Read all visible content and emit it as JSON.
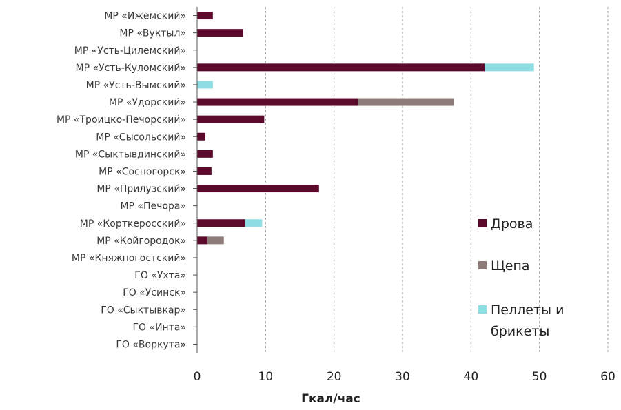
{
  "chart_data": {
    "type": "bar",
    "orientation": "horizontal",
    "stacked": true,
    "categories": [
      "МР «Ижемский»",
      "МР «Вуктыл»",
      "МР «Усть-Цилемский»",
      "МР «Усть-Куломский»",
      "МР «Усть-Вымский»",
      "МР «Удорский»",
      "МР «Троицко-Печорский»",
      "МР «Сысольский»",
      "МР «Сыктывдинский»",
      "МР «Сосногорск»",
      "МР «Прилузский»",
      "МР «Печора»",
      "МР «Корткеросский»",
      "МР «Койгородок»",
      "МР «Княжпогостский»",
      "ГО «Ухта»",
      "ГО «Усинск»",
      "ГО «Сыктывкар»",
      "ГО «Инта»",
      "ГО «Воркута»"
    ],
    "series": [
      {
        "name": "Дрова",
        "color": "#5c0a2c",
        "values": [
          2.3,
          6.7,
          0,
          42.0,
          0,
          23.5,
          9.8,
          1.2,
          2.3,
          2.1,
          17.8,
          0,
          7.0,
          1.5,
          0,
          0,
          0,
          0,
          0,
          0
        ]
      },
      {
        "name": "Щепа",
        "color": "#8c7b76",
        "values": [
          0,
          0,
          0,
          0,
          0,
          14.0,
          0,
          0,
          0,
          0,
          0,
          0,
          0,
          2.4,
          0,
          0,
          0,
          0,
          0,
          0
        ]
      },
      {
        "name": "Пеллеты и брикеты",
        "color": "#8fdde3",
        "values": [
          0,
          0,
          0,
          7.2,
          2.3,
          0,
          0,
          0,
          0,
          0,
          0,
          0,
          2.5,
          0,
          0,
          0,
          0,
          0,
          0,
          0
        ]
      }
    ],
    "x_ticks": [
      "0",
      "10",
      "20",
      "30",
      "40",
      "50",
      "60"
    ],
    "xlim": [
      0,
      60
    ],
    "xlabel": "Гкал/час",
    "legend": {
      "position": "right",
      "entries": [
        "Дрова",
        "Щепа",
        "Пеллеты и",
        "брикеты"
      ]
    },
    "grid": "vertical dashed"
  }
}
